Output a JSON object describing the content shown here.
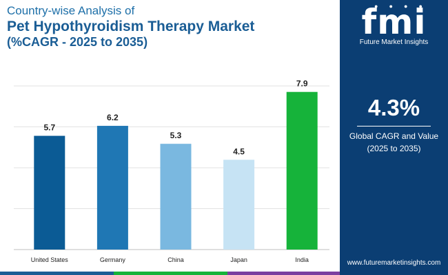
{
  "header": {
    "subtitle": "Country-wise Analysis of",
    "title": "Pet Hypothyroidism Therapy Market",
    "title_sub": "(%CAGR - 2025 to 2035)"
  },
  "panel": {
    "logo_mark": "fmi",
    "logo_text": "Future Market Insights",
    "cagr_value": "4.3%",
    "cagr_label_1": "Global CAGR and Value",
    "cagr_label_2": "(2025 to 2035)",
    "website": "www.futuremarketinsights.com"
  },
  "colors": {
    "panel_bg": "#0b3e73",
    "bars": [
      "#0b5b95",
      "#1f77b4",
      "#7ab8e0",
      "#c6e3f4",
      "#16b33a"
    ],
    "strip": [
      "#1a5d95",
      "#16b33a",
      "#7b3fa0"
    ]
  },
  "chart_data": {
    "type": "bar",
    "title": "Pet Hypothyroidism Therapy Market",
    "subtitle": "(%CAGR - 2025 to 2035)",
    "categories": [
      "United States",
      "Germany",
      "China",
      "Japan",
      "India"
    ],
    "values": [
      5.7,
      6.2,
      5.3,
      4.5,
      7.9
    ],
    "value_labels": [
      "5.7",
      "6.2",
      "5.3",
      "4.5",
      "7.9"
    ],
    "ylim": [
      0,
      8.2
    ],
    "grid": true,
    "legend": "none"
  }
}
